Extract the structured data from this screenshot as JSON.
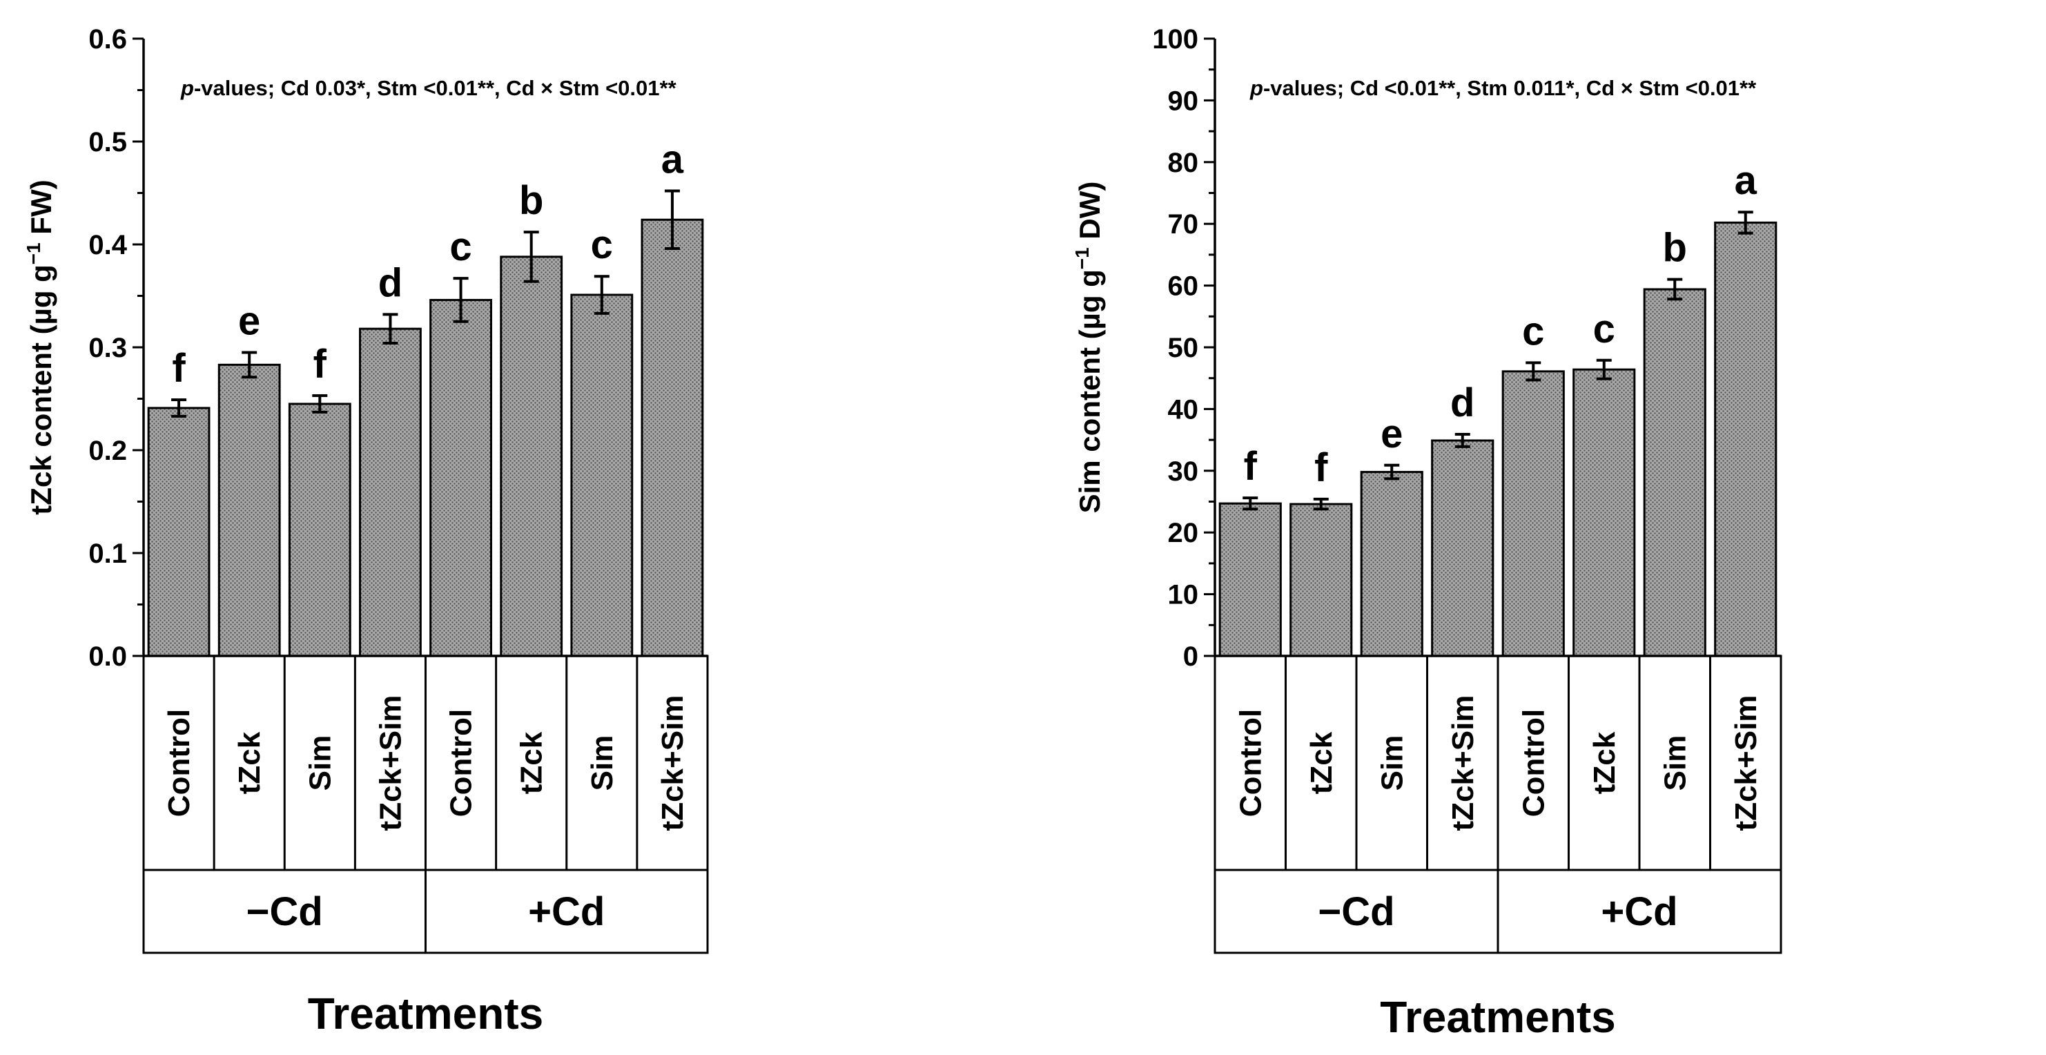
{
  "chart_data": [
    {
      "type": "bar",
      "categories": [
        "Control",
        "tZck",
        "Sim",
        "tZck+Sim",
        "Control",
        "tZck",
        "Sim",
        "tZck+Sim"
      ],
      "groups": [
        {
          "label": "−Cd",
          "span": [
            0,
            3
          ]
        },
        {
          "label": "+Cd",
          "span": [
            4,
            7
          ]
        }
      ],
      "values": [
        0.241,
        0.283,
        0.245,
        0.318,
        0.346,
        0.388,
        0.351,
        0.424
      ],
      "errors": [
        0.008,
        0.012,
        0.008,
        0.014,
        0.021,
        0.024,
        0.018,
        0.028
      ],
      "letters": [
        "f",
        "e",
        "f",
        "d",
        "c",
        "b",
        "c",
        "a"
      ],
      "ylabel_pre": "tZck content (µg g",
      "ylabel_sup": "−1",
      "ylabel_post": " FW)",
      "xlabel": "Treatments",
      "ylim": [
        0,
        0.6
      ],
      "yticks": [
        0.0,
        0.1,
        0.2,
        0.3,
        0.4,
        0.5,
        0.6
      ],
      "ytick_labels": [
        "0.0",
        "0.1",
        "0.2",
        "0.3",
        "0.4",
        "0.5",
        "0.6"
      ],
      "pvalue_p": "p",
      "pvalue_text": "-values; Cd 0.03*, Stm <0.01**, Cd × Stm <0.01**",
      "bar_fill": "#a8a8a8",
      "bar_dot": "#555555"
    },
    {
      "type": "bar",
      "categories": [
        "Control",
        "tZck",
        "Sim",
        "tZck+Sim",
        "Control",
        "tZck",
        "Sim",
        "tZck+Sim"
      ],
      "groups": [
        {
          "label": "−Cd",
          "span": [
            0,
            3
          ]
        },
        {
          "label": "+Cd",
          "span": [
            4,
            7
          ]
        }
      ],
      "values": [
        24.7,
        24.6,
        29.8,
        34.9,
        46.1,
        46.4,
        59.4,
        70.2
      ],
      "errors": [
        0.9,
        0.8,
        1.1,
        1.0,
        1.4,
        1.5,
        1.6,
        1.7
      ],
      "letters": [
        "f",
        "f",
        "e",
        "d",
        "c",
        "c",
        "b",
        "a"
      ],
      "ylabel_pre": "Sim content (µg g",
      "ylabel_sup": "−1",
      "ylabel_post": " DW)",
      "xlabel": "Treatments",
      "ylim": [
        0,
        100
      ],
      "yticks": [
        0,
        10,
        20,
        30,
        40,
        50,
        60,
        70,
        80,
        90,
        100
      ],
      "ytick_labels": [
        "0",
        "10",
        "20",
        "30",
        "40",
        "50",
        "60",
        "70",
        "80",
        "90",
        "100"
      ],
      "pvalue_p": "p",
      "pvalue_text": "-values; Cd <0.01**, Stm 0.011*, Cd × Stm <0.01**",
      "bar_fill": "#a8a8a8",
      "bar_dot": "#555555"
    }
  ]
}
